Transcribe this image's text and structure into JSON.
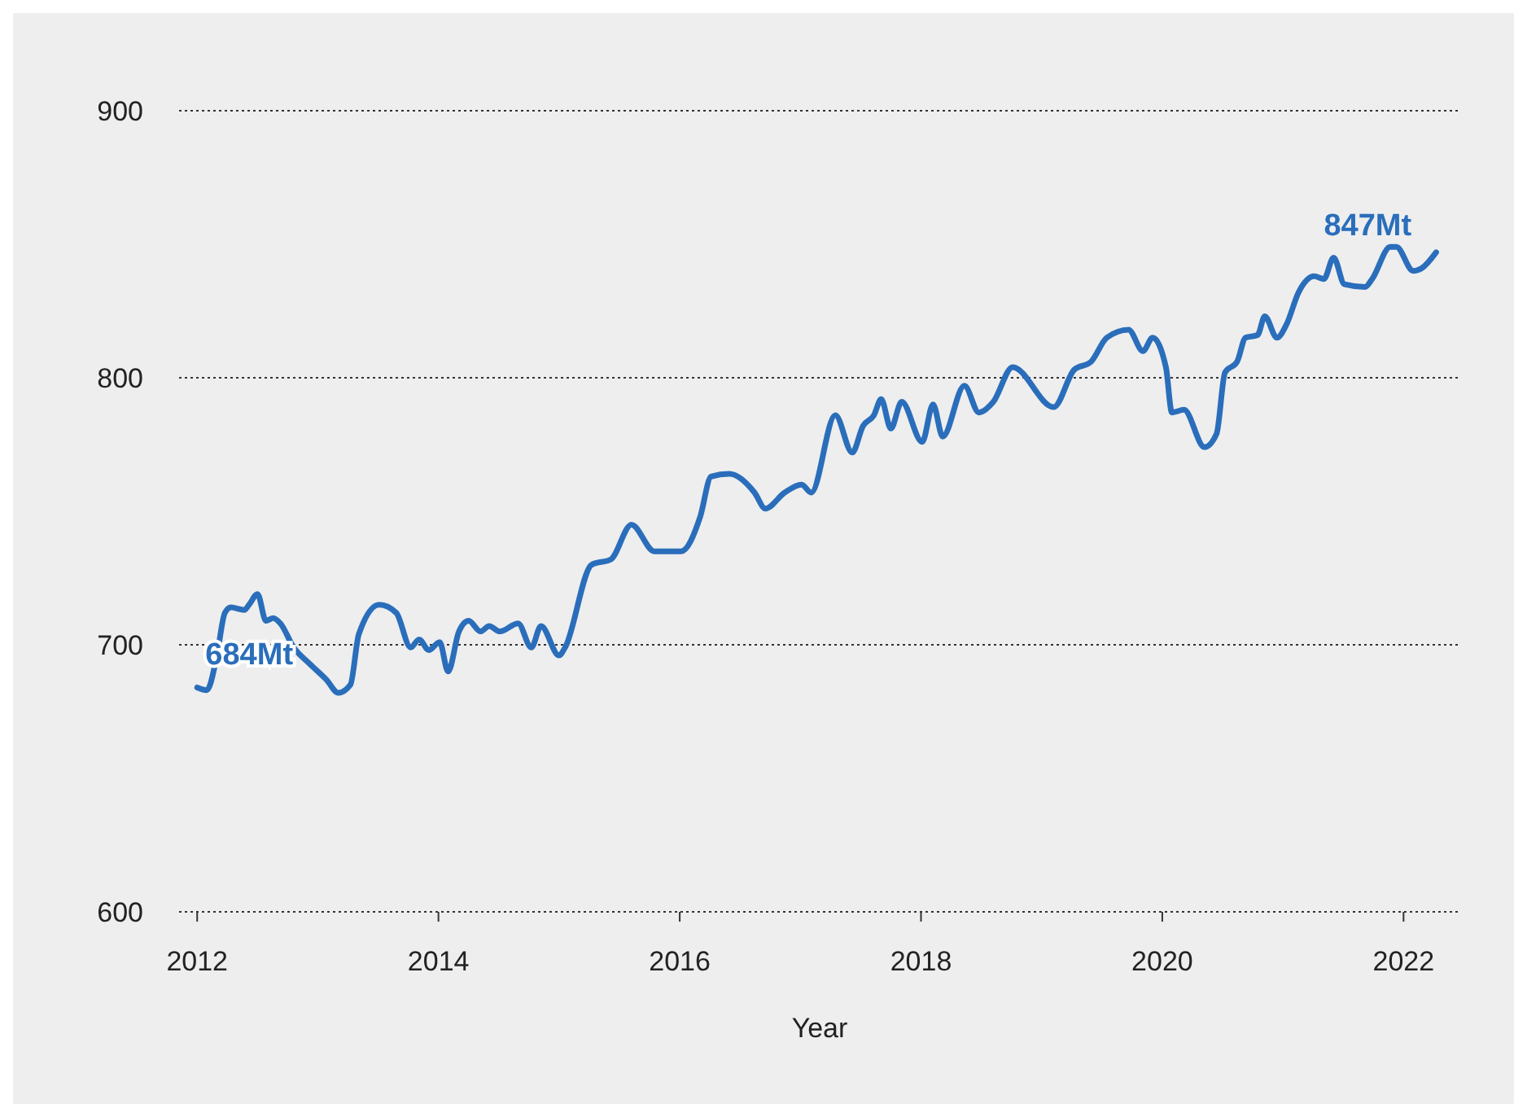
{
  "chart_data": {
    "type": "line",
    "xlabel": "Year",
    "x": [
      2012.0,
      2012.08,
      2012.16,
      2012.23,
      2012.28,
      2012.39,
      2012.43,
      2012.5,
      2012.57,
      2012.63,
      2012.69,
      2012.8,
      2012.93,
      2013.07,
      2013.17,
      2013.27,
      2013.34,
      2013.51,
      2013.65,
      2013.77,
      2013.84,
      2013.92,
      2014.01,
      2014.08,
      2014.17,
      2014.25,
      2014.35,
      2014.42,
      2014.51,
      2014.66,
      2014.77,
      2014.85,
      2015.0,
      2015.05,
      2015.27,
      2015.43,
      2015.6,
      2015.79,
      2016.01,
      2016.17,
      2016.26,
      2016.41,
      2016.62,
      2016.71,
      2016.87,
      2017.01,
      2017.09,
      2017.29,
      2017.43,
      2017.52,
      2017.61,
      2017.67,
      2017.75,
      2017.84,
      2018.01,
      2018.1,
      2018.18,
      2018.36,
      2018.48,
      2018.6,
      2018.76,
      2019.1,
      2019.27,
      2019.41,
      2019.54,
      2019.72,
      2019.84,
      2019.92,
      2020.03,
      2020.08,
      2020.18,
      2020.35,
      2020.45,
      2020.52,
      2020.62,
      2020.69,
      2020.79,
      2020.85,
      2020.95,
      2021.03,
      2021.13,
      2021.26,
      2021.34,
      2021.42,
      2021.51,
      2021.68,
      2021.74,
      2021.89,
      2021.94,
      2022.08,
      2022.15,
      2022.27
    ],
    "series": [
      {
        "color": "#2a6ebb",
        "values": [
          684,
          683,
          695,
          712,
          714,
          713,
          715,
          719,
          709,
          710,
          708,
          699,
          693,
          687,
          682,
          685,
          704,
          715,
          712,
          699,
          702,
          698,
          701,
          690,
          705,
          709,
          705,
          707,
          705,
          708,
          699,
          707,
          696,
          699,
          730,
          732,
          745,
          735,
          735,
          748,
          763,
          764,
          757,
          751,
          757,
          760,
          757,
          786,
          772,
          782,
          786,
          792,
          781,
          791,
          776,
          790,
          778,
          797,
          787,
          791,
          804,
          789,
          803,
          806,
          815,
          818,
          810,
          815,
          804,
          787,
          788,
          774,
          779,
          802,
          806,
          815,
          816,
          823,
          815,
          820,
          832,
          838,
          837,
          845,
          835,
          834,
          837,
          849,
          849,
          840,
          841,
          847
        ]
      }
    ],
    "annotations": [
      {
        "text": "684Mt",
        "x": 2012.0,
        "y": 684
      },
      {
        "text": "847Mt",
        "x": 2022.27,
        "y": 847
      }
    ],
    "xlim": [
      2011.85,
      2022.47
    ],
    "xticks": [
      2012,
      2014,
      2016,
      2018,
      2020,
      2022
    ],
    "ylim": [
      600,
      900
    ],
    "yticks": [
      600,
      700,
      800,
      900
    ],
    "grid": "y",
    "line_style": "solid",
    "marker": "none"
  }
}
